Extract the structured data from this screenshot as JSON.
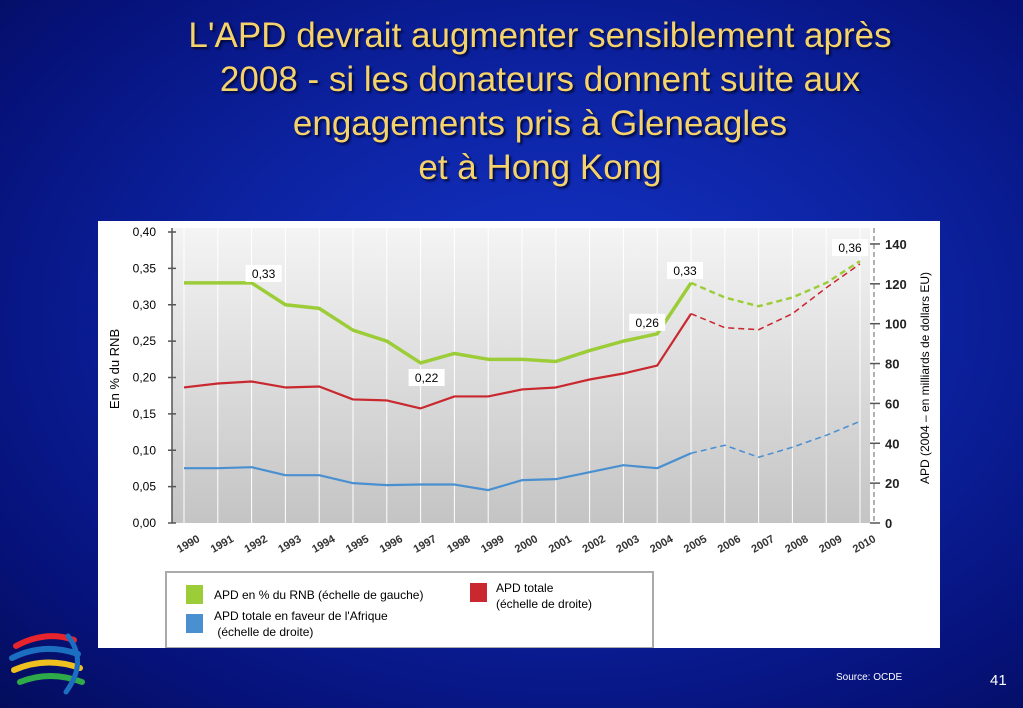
{
  "slide": {
    "title_lines": [
      "L'APD devrait augmenter sensiblement après",
      "2008 - si les donateurs donnent suite aux",
      "engagements pris à Gleneagles",
      "et à Hong Kong"
    ],
    "source": "Source:  OCDE",
    "page_number": "41"
  },
  "colors": {
    "background": "#0c22a0",
    "title": "#f6d36a",
    "gni_series": "#9ccd38",
    "total_series": "#c8282e",
    "africa_series": "#4a90d0"
  },
  "logo_icon": "wto-logo-icon",
  "chart_data": {
    "type": "line",
    "categories": [
      "1990",
      "1991",
      "1992",
      "1993",
      "1994",
      "1995",
      "1996",
      "1997",
      "1998",
      "1999",
      "2000",
      "2001",
      "2002",
      "2003",
      "2004",
      "2005",
      "2006",
      "2007",
      "2008",
      "2009",
      "2010"
    ],
    "y_left_label": "En % du RNB",
    "y_right_label": "APD (2004 – en milliards de dollars EU)",
    "y_left_ticks": [
      "0,00",
      "0,05",
      "0,10",
      "0,15",
      "0,20",
      "0,25",
      "0,30",
      "0,35",
      "0,40"
    ],
    "y_right_ticks": [
      "0",
      "20",
      "40",
      "60",
      "80",
      "100",
      "120",
      "140"
    ],
    "y_left_range": [
      0,
      0.4
    ],
    "y_right_range": [
      0,
      146
    ],
    "projection_start_year": "2005",
    "series": [
      {
        "name": "APD en % du RNB (échelle de gauche)",
        "axis": "left",
        "color": "#9ccd38",
        "values": [
          0.33,
          0.33,
          0.33,
          0.3,
          0.295,
          0.265,
          0.25,
          0.22,
          0.233,
          0.225,
          0.225,
          0.222,
          0.237,
          0.25,
          0.26,
          0.33,
          0.31,
          0.298,
          0.31,
          0.33,
          0.36
        ]
      },
      {
        "name": "APD totale\n(échelle de droite)",
        "axis": "right",
        "color": "#c8282e",
        "values": [
          68,
          70,
          71,
          68,
          68.5,
          62,
          61.5,
          57.5,
          63.5,
          63.5,
          67,
          68,
          72,
          75,
          79,
          105,
          98,
          97,
          105,
          118,
          130
        ]
      },
      {
        "name": "APD totale en faveur de l'Afrique\n (échelle de droite)",
        "axis": "right",
        "color": "#4a90d0",
        "values": [
          27.5,
          27.5,
          28,
          24,
          24,
          20,
          19,
          19.3,
          19.3,
          16.5,
          21.5,
          22,
          25.5,
          29,
          27.5,
          35,
          39,
          33,
          38,
          44,
          51
        ]
      }
    ],
    "annotations": [
      {
        "text": "0,33",
        "year": "1992",
        "value": 0.33
      },
      {
        "text": "0,22",
        "year": "1997",
        "value": 0.22
      },
      {
        "text": "0,26",
        "year": "2004",
        "value": 0.26
      },
      {
        "text": "0,33",
        "year": "2005",
        "value": 0.33
      },
      {
        "text": "0,36",
        "year": "2010",
        "value": 0.36
      }
    ],
    "legend": {
      "placement": "bottom",
      "items": [
        {
          "label": "APD en % du RNB (échelle de gauche)",
          "color": "#9ccd38"
        },
        {
          "label": "APD totale\n(échelle de droite)",
          "color": "#c8282e"
        },
        {
          "label": "APD totale en faveur de l'Afrique\n (échelle de droite)",
          "color": "#4a90d0"
        }
      ]
    }
  }
}
